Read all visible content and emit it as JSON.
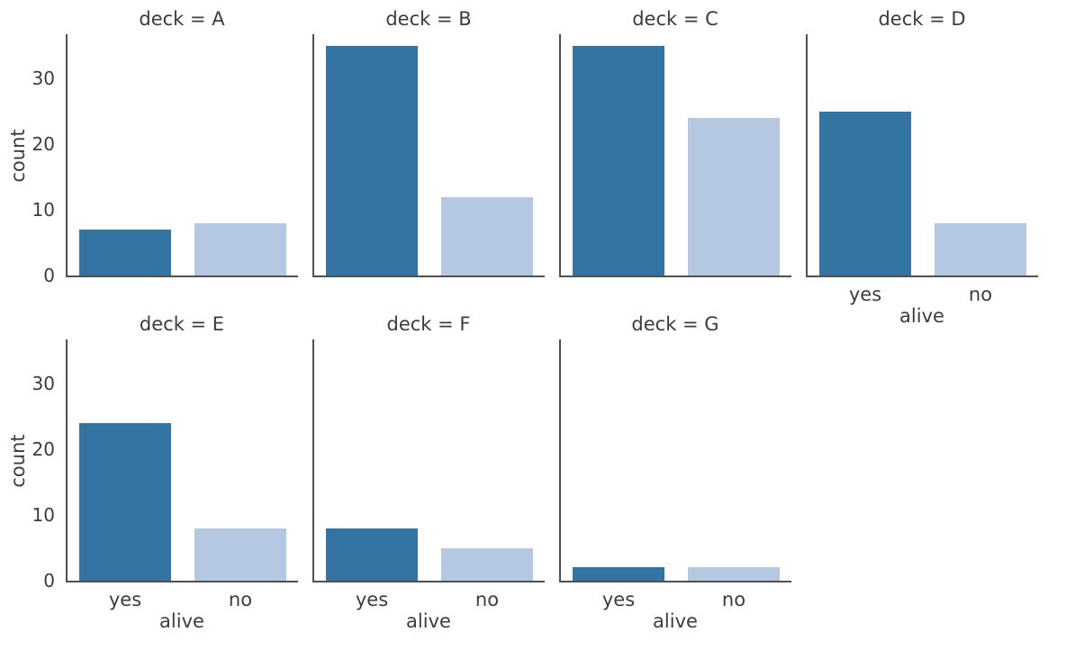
{
  "figure": {
    "background": "#ffffff",
    "text_color": "#3c3c3c",
    "spine_color": "#505050"
  },
  "chart_data": {
    "type": "bar",
    "chart_kind": "faceted-countplot",
    "facet_variable": "deck",
    "facet_grid": {
      "rows": 2,
      "cols": 4
    },
    "categories": [
      "yes",
      "no"
    ],
    "xlabel": "alive",
    "ylabel": "count",
    "yticks": [
      0,
      10,
      20,
      30
    ],
    "ylim": [
      0,
      36.75
    ],
    "bar_colors": [
      "#3474a2",
      "#b4c8e2"
    ],
    "grid": false,
    "legend": "none",
    "facets": [
      {
        "label": "A",
        "title": "deck = A",
        "values": [
          7,
          8
        ]
      },
      {
        "label": "B",
        "title": "deck = B",
        "values": [
          35,
          12
        ]
      },
      {
        "label": "C",
        "title": "deck = C",
        "values": [
          35,
          24
        ]
      },
      {
        "label": "D",
        "title": "deck = D",
        "values": [
          25,
          8
        ]
      },
      {
        "label": "E",
        "title": "deck = E",
        "values": [
          24,
          8
        ]
      },
      {
        "label": "F",
        "title": "deck = F",
        "values": [
          8,
          5
        ]
      },
      {
        "label": "G",
        "title": "deck = G",
        "values": [
          2,
          2
        ]
      }
    ]
  }
}
